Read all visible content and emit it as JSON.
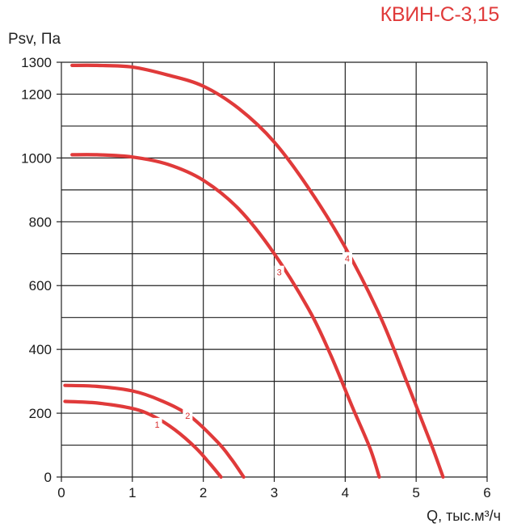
{
  "chart_data": {
    "type": "line",
    "title": "КВИН-С-3,15",
    "ylabel": "Psv, Па",
    "xlabel": "Q, тыс.м³/ч",
    "xlim": [
      0,
      6
    ],
    "ylim": [
      0,
      1300
    ],
    "xticks": [
      "0",
      "1",
      "2",
      "3",
      "4",
      "5",
      "6"
    ],
    "xtick_values": [
      0,
      1,
      2,
      3,
      4,
      5,
      6
    ],
    "yticks": [
      "0",
      "200",
      "400",
      "600",
      "800",
      "1000",
      "1200",
      "1300"
    ],
    "ytick_values": [
      0,
      200,
      400,
      600,
      800,
      1000,
      1200,
      1300
    ],
    "grid": true,
    "line_color": "#e03a3a",
    "series": [
      {
        "name": "1",
        "x": [
          0.05,
          0.5,
          1.0,
          1.3,
          1.6,
          1.9,
          2.1,
          2.25
        ],
        "y": [
          237,
          232,
          215,
          190,
          148,
          90,
          40,
          0
        ],
        "label_at": [
          1.35,
          165
        ]
      },
      {
        "name": "2",
        "x": [
          0.05,
          0.5,
          1.0,
          1.4,
          1.8,
          2.2,
          2.4,
          2.57
        ],
        "y": [
          287,
          284,
          270,
          240,
          193,
          110,
          55,
          0
        ],
        "label_at": [
          1.78,
          192
        ]
      },
      {
        "name": "3",
        "x": [
          0.15,
          0.5,
          1.0,
          1.5,
          2.0,
          2.5,
          3.0,
          3.5,
          3.8,
          4.1,
          4.35,
          4.48
        ],
        "y": [
          1010,
          1010,
          1003,
          980,
          930,
          840,
          700,
          520,
          380,
          220,
          90,
          0
        ],
        "label_at": [
          3.07,
          642
        ]
      },
      {
        "name": "4",
        "x": [
          0.15,
          0.5,
          1.0,
          1.5,
          2.0,
          2.5,
          3.0,
          3.5,
          4.0,
          4.5,
          4.9,
          5.2,
          5.38
        ],
        "y": [
          1290,
          1290,
          1285,
          1260,
          1225,
          1155,
          1050,
          900,
          720,
          500,
          280,
          110,
          0
        ],
        "label_at": [
          4.03,
          685
        ]
      }
    ]
  }
}
